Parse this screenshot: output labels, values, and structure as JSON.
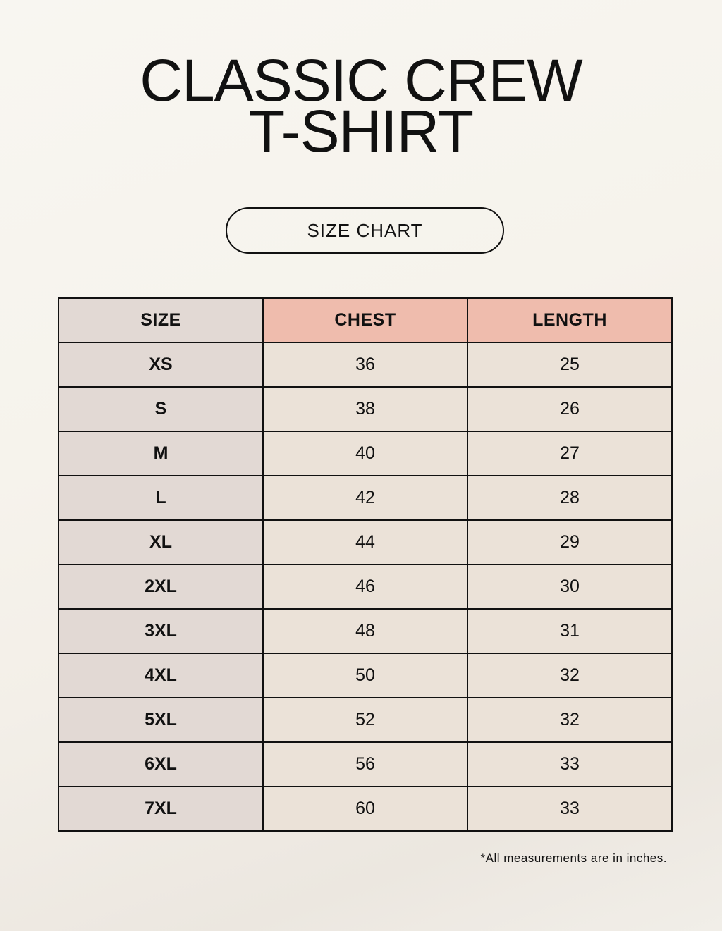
{
  "title": {
    "line1": "CLASSIC CREW",
    "line2": "T-SHIRT"
  },
  "badge": "SIZE CHART",
  "colors": {
    "size_column": "#e2d9d4",
    "header_accent": "#efbcad",
    "cell": "#ebe2d8"
  },
  "table": {
    "headers": [
      "SIZE",
      "CHEST",
      "LENGTH"
    ],
    "rows": [
      [
        "XS",
        "36",
        "25"
      ],
      [
        "S",
        "38",
        "26"
      ],
      [
        "M",
        "40",
        "27"
      ],
      [
        "L",
        "42",
        "28"
      ],
      [
        "XL",
        "44",
        "29"
      ],
      [
        "2XL",
        "46",
        "30"
      ],
      [
        "3XL",
        "48",
        "31"
      ],
      [
        "4XL",
        "50",
        "32"
      ],
      [
        "5XL",
        "52",
        "32"
      ],
      [
        "6XL",
        "56",
        "33"
      ],
      [
        "7XL",
        "60",
        "33"
      ]
    ]
  },
  "footnote": "*All measurements are in inches."
}
